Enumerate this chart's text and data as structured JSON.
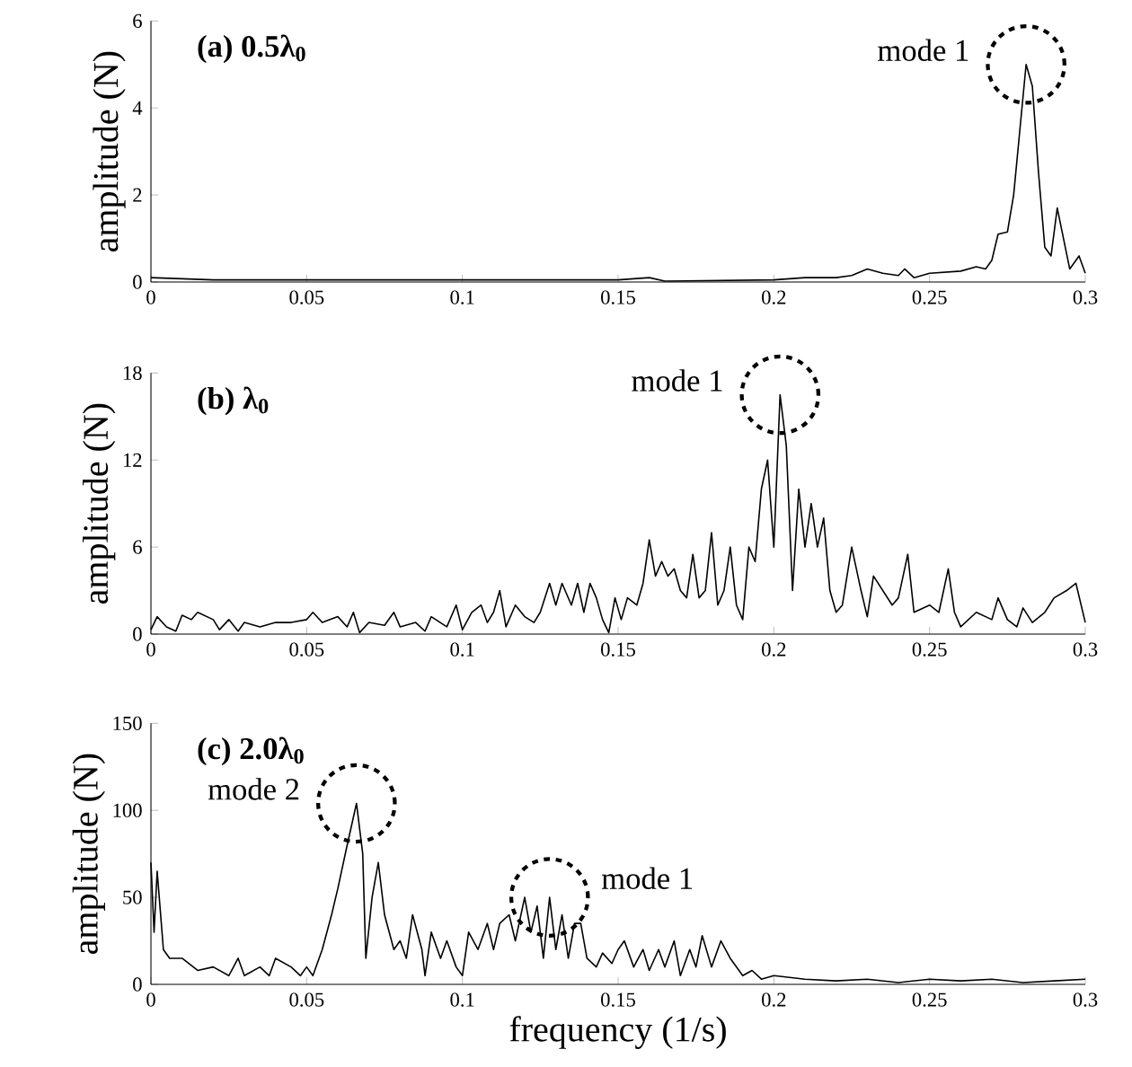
{
  "chart_data": [
    {
      "type": "line",
      "title": "(a) 0.5λ$_{0}$",
      "ylabel": "amplitude (N)",
      "color": "#000000",
      "marker": "none",
      "grid": false,
      "x": [
        0,
        0.02,
        0.05,
        0.1,
        0.15,
        0.16,
        0.165,
        0.2,
        0.21,
        0.22,
        0.225,
        0.23,
        0.235,
        0.24,
        0.242,
        0.245,
        0.25,
        0.26,
        0.265,
        0.268,
        0.27,
        0.272,
        0.275,
        0.277,
        0.279,
        0.281,
        0.283,
        0.285,
        0.287,
        0.289,
        0.291,
        0.293,
        0.295,
        0.298,
        0.3
      ],
      "values": [
        0.1,
        0.05,
        0.05,
        0.05,
        0.05,
        0.1,
        0.02,
        0.05,
        0.1,
        0.1,
        0.15,
        0.3,
        0.2,
        0.15,
        0.3,
        0.1,
        0.2,
        0.25,
        0.35,
        0.3,
        0.5,
        1.1,
        1.15,
        2.0,
        3.5,
        5.0,
        4.5,
        2.5,
        0.8,
        0.6,
        1.7,
        1.0,
        0.3,
        0.6,
        0.2
      ],
      "xlim": [
        0,
        0.3
      ],
      "xticks": [
        0,
        0.05,
        0.1,
        0.15,
        0.2,
        0.25,
        0.3
      ],
      "ylim": [
        0,
        6
      ],
      "yticks": [
        0,
        2,
        4,
        6
      ],
      "annotations": [
        {
          "text": "mode 1",
          "x": 0.281,
          "y": 5.0
        }
      ]
    },
    {
      "type": "line",
      "title": "(b) λ$_{0}$",
      "ylabel": "amplitude (N)",
      "color": "#000000",
      "marker": "none",
      "grid": false,
      "x": [
        0,
        0.002,
        0.005,
        0.008,
        0.01,
        0.013,
        0.015,
        0.02,
        0.022,
        0.025,
        0.028,
        0.03,
        0.035,
        0.04,
        0.045,
        0.05,
        0.052,
        0.055,
        0.06,
        0.063,
        0.065,
        0.067,
        0.07,
        0.075,
        0.078,
        0.08,
        0.085,
        0.088,
        0.09,
        0.095,
        0.098,
        0.1,
        0.103,
        0.106,
        0.108,
        0.11,
        0.112,
        0.114,
        0.117,
        0.12,
        0.123,
        0.125,
        0.128,
        0.13,
        0.132,
        0.135,
        0.137,
        0.139,
        0.141,
        0.143,
        0.145,
        0.147,
        0.149,
        0.151,
        0.153,
        0.156,
        0.158,
        0.16,
        0.162,
        0.164,
        0.166,
        0.168,
        0.17,
        0.172,
        0.174,
        0.176,
        0.178,
        0.18,
        0.182,
        0.184,
        0.186,
        0.188,
        0.19,
        0.192,
        0.194,
        0.196,
        0.198,
        0.2,
        0.202,
        0.204,
        0.206,
        0.208,
        0.21,
        0.212,
        0.214,
        0.216,
        0.218,
        0.22,
        0.222,
        0.225,
        0.228,
        0.23,
        0.232,
        0.235,
        0.238,
        0.24,
        0.243,
        0.245,
        0.25,
        0.253,
        0.256,
        0.258,
        0.26,
        0.265,
        0.27,
        0.272,
        0.275,
        0.278,
        0.28,
        0.283,
        0.287,
        0.29,
        0.294,
        0.297,
        0.3
      ],
      "values": [
        0.3,
        1.2,
        0.5,
        0.2,
        1.3,
        1.0,
        1.5,
        1.0,
        0.3,
        1.0,
        0.2,
        0.8,
        0.5,
        0.8,
        0.8,
        1.0,
        1.5,
        0.8,
        1.2,
        0.5,
        1.5,
        0.1,
        0.8,
        0.6,
        1.5,
        0.5,
        0.8,
        0.2,
        1.2,
        0.5,
        2.0,
        0.3,
        1.5,
        2.0,
        0.8,
        1.5,
        3.0,
        0.5,
        2.0,
        1.2,
        0.8,
        1.5,
        3.5,
        2.0,
        3.5,
        2.0,
        3.5,
        1.5,
        3.5,
        2.5,
        1.0,
        0.1,
        2.5,
        1.0,
        2.5,
        2.0,
        3.5,
        6.5,
        4.0,
        5.0,
        4.0,
        4.5,
        3.0,
        2.5,
        5.5,
        2.5,
        3.0,
        7.0,
        2.0,
        3.0,
        6.0,
        2.0,
        1.0,
        6.0,
        5.0,
        10.0,
        12.0,
        6.0,
        16.5,
        13.0,
        3.0,
        10.0,
        6.0,
        9.0,
        6.0,
        8.0,
        3.0,
        1.5,
        2.0,
        6.0,
        3.0,
        1.2,
        4.0,
        3.0,
        2.0,
        2.5,
        5.5,
        1.5,
        2.0,
        1.5,
        4.5,
        1.5,
        0.5,
        1.5,
        1.0,
        2.5,
        1.0,
        0.5,
        1.8,
        0.8,
        1.5,
        2.5,
        3.0,
        3.5,
        0.8
      ],
      "xlim": [
        0,
        0.3
      ],
      "xticks": [
        0,
        0.05,
        0.1,
        0.15,
        0.2,
        0.25,
        0.3
      ],
      "ylim": [
        0,
        18
      ],
      "yticks": [
        0,
        6,
        12,
        18
      ],
      "annotations": [
        {
          "text": "mode 1",
          "x": 0.202,
          "y": 16.5
        }
      ]
    },
    {
      "type": "line",
      "title": "(c) 2.0λ$_{0}$",
      "xlabel": "frequency (1/s)",
      "ylabel": "amplitude (N)",
      "color": "#000000",
      "marker": "none",
      "grid": false,
      "x": [
        0,
        0.001,
        0.002,
        0.004,
        0.006,
        0.01,
        0.015,
        0.02,
        0.025,
        0.028,
        0.03,
        0.035,
        0.038,
        0.04,
        0.045,
        0.048,
        0.05,
        0.052,
        0.055,
        0.058,
        0.06,
        0.063,
        0.066,
        0.068,
        0.069,
        0.071,
        0.073,
        0.075,
        0.078,
        0.08,
        0.082,
        0.084,
        0.087,
        0.088,
        0.09,
        0.093,
        0.095,
        0.098,
        0.1,
        0.102,
        0.105,
        0.108,
        0.11,
        0.112,
        0.115,
        0.117,
        0.12,
        0.122,
        0.124,
        0.126,
        0.128,
        0.13,
        0.132,
        0.134,
        0.136,
        0.138,
        0.14,
        0.143,
        0.145,
        0.148,
        0.15,
        0.152,
        0.155,
        0.158,
        0.16,
        0.163,
        0.165,
        0.168,
        0.17,
        0.173,
        0.175,
        0.177,
        0.18,
        0.183,
        0.186,
        0.19,
        0.193,
        0.196,
        0.2,
        0.21,
        0.22,
        0.23,
        0.24,
        0.25,
        0.26,
        0.27,
        0.28,
        0.29,
        0.3
      ],
      "values": [
        70,
        30,
        65,
        20,
        15,
        15,
        8,
        10,
        5,
        15,
        5,
        10,
        5,
        15,
        10,
        5,
        10,
        5,
        20,
        40,
        55,
        80,
        104,
        75,
        15,
        50,
        70,
        40,
        20,
        25,
        15,
        40,
        20,
        5,
        30,
        15,
        25,
        10,
        5,
        30,
        20,
        35,
        20,
        35,
        40,
        25,
        50,
        30,
        45,
        15,
        50,
        20,
        40,
        15,
        35,
        35,
        15,
        10,
        18,
        12,
        20,
        25,
        10,
        20,
        8,
        20,
        10,
        25,
        5,
        20,
        10,
        28,
        10,
        25,
        15,
        5,
        8,
        3,
        5,
        3,
        2,
        3,
        1,
        3,
        2,
        3,
        1,
        2,
        3
      ],
      "xlim": [
        0,
        0.3
      ],
      "xticks": [
        0,
        0.05,
        0.1,
        0.15,
        0.2,
        0.25,
        0.3
      ],
      "ylim": [
        0,
        150
      ],
      "yticks": [
        0,
        50,
        100,
        150
      ],
      "annotations": [
        {
          "text": "mode 2",
          "x": 0.066,
          "y": 104
        },
        {
          "text": "mode 1",
          "x": 0.128,
          "y": 50
        }
      ]
    }
  ]
}
